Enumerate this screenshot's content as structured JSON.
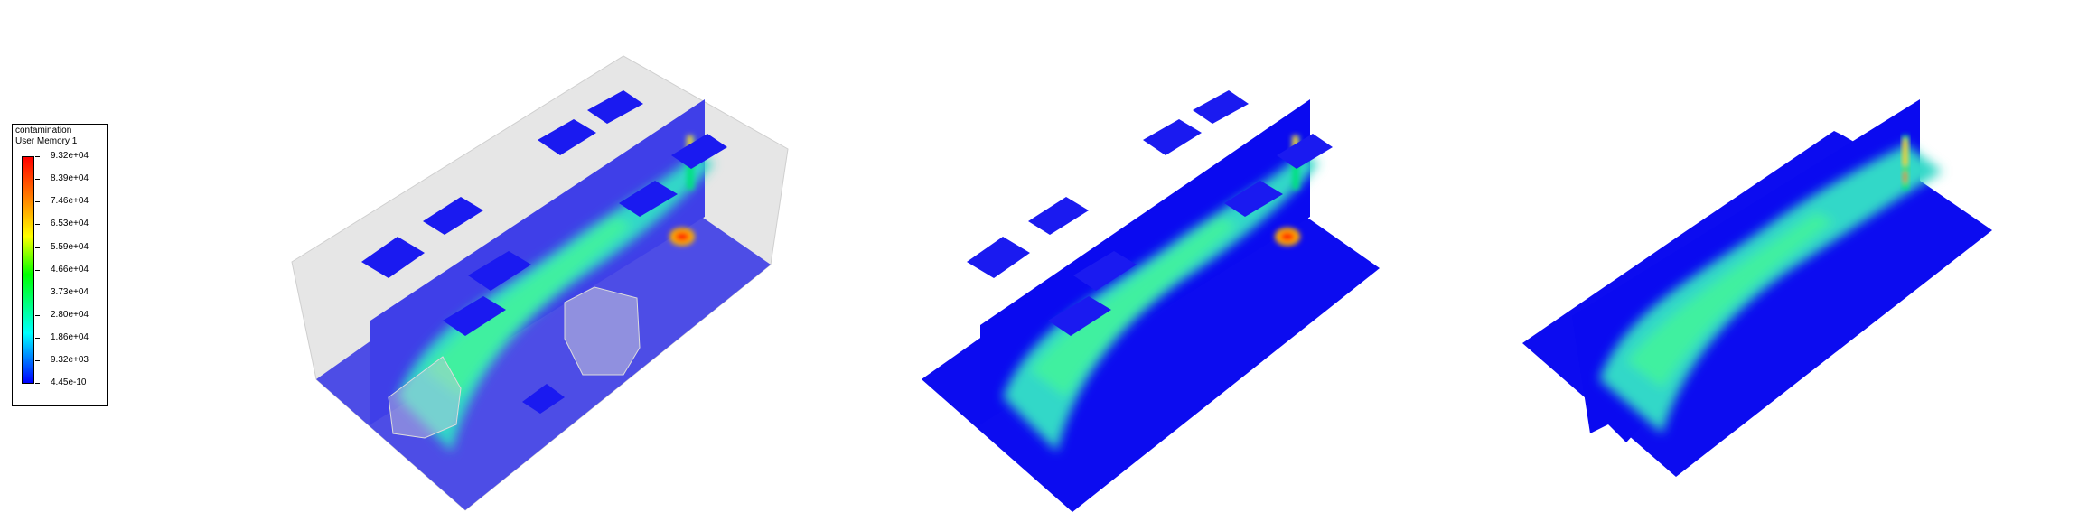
{
  "legend": {
    "title": "contamination",
    "subtitle": "User Memory 1",
    "tick_labels": [
      "9.32e+04",
      "8.39e+04",
      "7.46e+04",
      "6.53e+04",
      "5.59e+04",
      "4.66e+04",
      "3.73e+04",
      "2.80e+04",
      "1.86e+04",
      "9.32e+03",
      "4.45e-10"
    ],
    "colors": [
      "#ff0000",
      "#ff7f00",
      "#ffff00",
      "#00ff00",
      "#00ffff",
      "#0000ff"
    ]
  },
  "views": [
    {
      "name": "view-with-room-outline"
    },
    {
      "name": "view-planes"
    },
    {
      "name": "view-cropped-planes"
    }
  ]
}
